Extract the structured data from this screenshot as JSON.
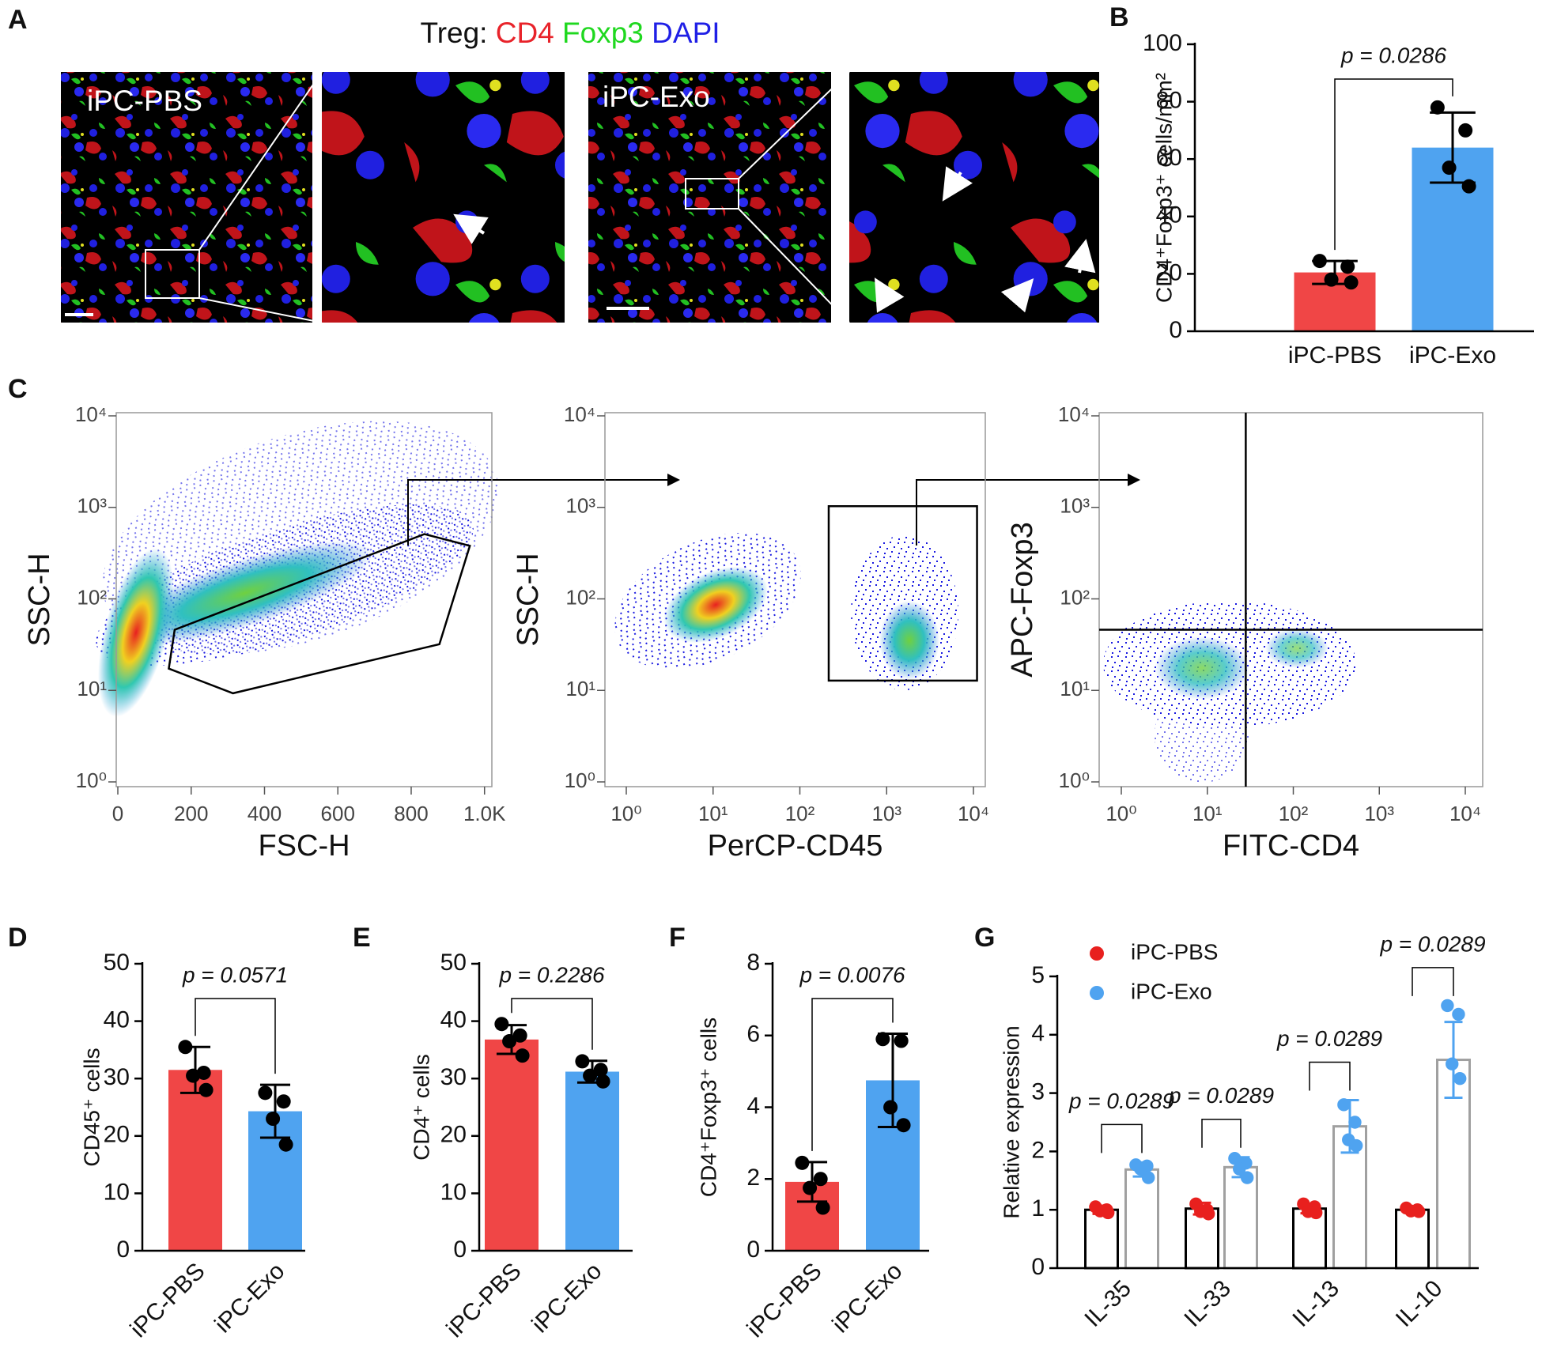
{
  "micrograph": {
    "panel": "A",
    "title": "Treg:",
    "stains": [
      {
        "name": "CD4",
        "color": "#e8232a"
      },
      {
        "name": "Foxp3",
        "color": "#1fd81f"
      },
      {
        "name": "DAPI",
        "color": "#1f1fe6"
      }
    ],
    "groups": [
      "iPC-PBS",
      "iPC-Exo"
    ]
  },
  "chart_data": [
    {
      "type": "bar",
      "panel": "B",
      "ylabel": "CD4⁺Foxp3⁺ cells/mm²",
      "categories": [
        "iPC-PBS",
        "iPC-Exo"
      ],
      "values": [
        20.5,
        64
      ],
      "errors": [
        4,
        12.2
      ],
      "points": [
        [
          24.5,
          22.5,
          18,
          17
        ],
        [
          78,
          70,
          57,
          50.5
        ]
      ],
      "colors": [
        "#f04646",
        "#4fa3f0"
      ],
      "point_color": "#000000",
      "ylim": [
        0,
        100
      ],
      "yticks": [
        0,
        20,
        40,
        60,
        80,
        100
      ],
      "annotation": "p = 0.0286",
      "rotate_labels": false
    },
    {
      "type": "flow",
      "panel": "C",
      "xlabel": "FSC-H",
      "ylabel": "SSC-H",
      "xscale": "linear",
      "yscale": "log",
      "xlim": [
        0,
        1020
      ],
      "ylim": [
        1,
        10000
      ],
      "xticks": [
        0,
        200,
        400,
        600,
        800,
        {
          "value": 1000,
          "label": "1.0K"
        }
      ],
      "yticks": [
        {
          "value": 1,
          "label": "10⁰"
        },
        {
          "value": 10,
          "label": "10¹"
        },
        {
          "value": 100,
          "label": "10²"
        },
        {
          "value": 1000,
          "label": "10³"
        },
        {
          "value": 10000,
          "label": "10⁴"
        }
      ],
      "gate": {
        "x": [
          139,
          314,
          877,
          960,
          836,
          155
        ],
        "y": [
          17.3,
          9.3,
          32,
          380,
          510,
          46
        ]
      }
    },
    {
      "type": "flow",
      "xlabel": "PerCP-CD45",
      "ylabel": "SSC-H",
      "xscale": "log",
      "yscale": "log",
      "xlim": [
        1,
        10000
      ],
      "ylim": [
        1,
        10000
      ],
      "xticks": [
        {
          "value": 1,
          "label": "10⁰"
        },
        {
          "value": 10,
          "label": "10¹"
        },
        {
          "value": 100,
          "label": "10²"
        },
        {
          "value": 1000,
          "label": "10³"
        },
        {
          "value": 10000,
          "label": "10⁴"
        }
      ],
      "yticks": [
        {
          "value": 1,
          "label": "10⁰"
        },
        {
          "value": 10,
          "label": "10¹"
        },
        {
          "value": 100,
          "label": "10²"
        },
        {
          "value": 1000,
          "label": "10³"
        },
        {
          "value": 10000,
          "label": "10⁴"
        }
      ],
      "gate": {
        "x": [
          215,
          11000,
          11000,
          215
        ],
        "y": [
          1030,
          1030,
          12.8,
          12.8
        ]
      }
    },
    {
      "type": "flow",
      "xlabel": "FITC-CD4",
      "ylabel": "APC-Foxp3",
      "xscale": "log",
      "yscale": "log",
      "xlim": [
        1,
        10000
      ],
      "ylim": [
        1,
        10000
      ],
      "xticks": [
        {
          "value": 1,
          "label": "10⁰"
        },
        {
          "value": 10,
          "label": "10¹"
        },
        {
          "value": 100,
          "label": "10²"
        },
        {
          "value": 1000,
          "label": "10³"
        },
        {
          "value": 10000,
          "label": "10⁴"
        }
      ],
      "yticks": [
        {
          "value": 1,
          "label": "10⁰"
        },
        {
          "value": 10,
          "label": "10¹"
        },
        {
          "value": 100,
          "label": "10²"
        },
        {
          "value": 1000,
          "label": "10³"
        },
        {
          "value": 10000,
          "label": "10⁴"
        }
      ],
      "quadrant": {
        "x": 28,
        "y": 46
      }
    },
    {
      "type": "bar",
      "panel": "D",
      "ylabel": "CD45⁺ cells",
      "categories": [
        "iPC-PBS",
        "iPC-Exo"
      ],
      "values": [
        31.5,
        24.3
      ],
      "errors": [
        4,
        4.6
      ],
      "points": [
        [
          35.5,
          31,
          30.5,
          28
        ],
        [
          27.5,
          26,
          23,
          18.5
        ]
      ],
      "colors": [
        "#f04646",
        "#4fa3f0"
      ],
      "point_color": "#000000",
      "ylim": [
        0,
        50
      ],
      "yticks": [
        0,
        10,
        20,
        30,
        40,
        50
      ],
      "annotation": "p = 0.0571",
      "rotate_labels": true
    },
    {
      "type": "bar",
      "panel": "E",
      "ylabel": "CD4⁺ cells",
      "categories": [
        "iPC-PBS",
        "iPC-Exo"
      ],
      "values": [
        36.8,
        31.2
      ],
      "errors": [
        2.5,
        1.9
      ],
      "points": [
        [
          39.5,
          37.5,
          36.5,
          34
        ],
        [
          33,
          31.5,
          30.5,
          29.5
        ]
      ],
      "colors": [
        "#f04646",
        "#4fa3f0"
      ],
      "point_color": "#000000",
      "ylim": [
        0,
        50
      ],
      "yticks": [
        0,
        10,
        20,
        30,
        40,
        50
      ],
      "annotation": "p = 0.2286",
      "rotate_labels": true
    },
    {
      "type": "bar",
      "panel": "F",
      "ylabel": "CD4⁺Foxp3⁺ cells",
      "categories": [
        "iPC-PBS",
        "iPC-Exo"
      ],
      "values": [
        1.92,
        4.75
      ],
      "errors": [
        0.55,
        1.3
      ],
      "points": [
        [
          2.45,
          2.0,
          1.75,
          1.2
        ],
        [
          5.9,
          5.85,
          4.0,
          3.5
        ]
      ],
      "colors": [
        "#f04646",
        "#4fa3f0"
      ],
      "point_color": "#000000",
      "ylim": [
        0,
        8
      ],
      "yticks": [
        0,
        2,
        4,
        6,
        8
      ],
      "annotation": "p = 0.0076",
      "rotate_labels": true
    },
    {
      "type": "grouped_bar",
      "panel": "G",
      "ylabel": "Relative expression",
      "categories": [
        "IL-35",
        "IL-33",
        "IL-13",
        "IL-10"
      ],
      "series": [
        {
          "name": "iPC-PBS",
          "color": "#e8201e",
          "bar_color": "#000000",
          "values": [
            1,
            1.02,
            1.02,
            1.0
          ],
          "errors": [
            0.07,
            0.1,
            0.08,
            0.05
          ],
          "points": [
            [
              1.05,
              1.0,
              0.98,
              0.95
            ],
            [
              1.1,
              1.0,
              0.97,
              0.93
            ],
            [
              1.1,
              1.05,
              0.97,
              0.95
            ],
            [
              1.03,
              1.0,
              0.98,
              0.97
            ]
          ]
        },
        {
          "name": "iPC-Exo",
          "color": "#4fa3f0",
          "bar_color": "#a0a0a0",
          "values": [
            1.69,
            1.73,
            2.43,
            3.57
          ],
          "errors": [
            0.12,
            0.17,
            0.45,
            0.65
          ],
          "points": [
            [
              1.77,
              1.75,
              1.7,
              1.55
            ],
            [
              1.88,
              1.8,
              1.7,
              1.55
            ],
            [
              2.8,
              2.5,
              2.2,
              2.1
            ],
            [
              4.5,
              4.35,
              3.5,
              3.25
            ]
          ]
        }
      ],
      "ylim": [
        0,
        5
      ],
      "yticks": [
        0,
        1,
        2,
        3,
        4,
        5
      ],
      "annotations": [
        "p = 0.0289",
        "p = 0.0289",
        "p = 0.0289",
        "p = 0.0289"
      ]
    }
  ]
}
